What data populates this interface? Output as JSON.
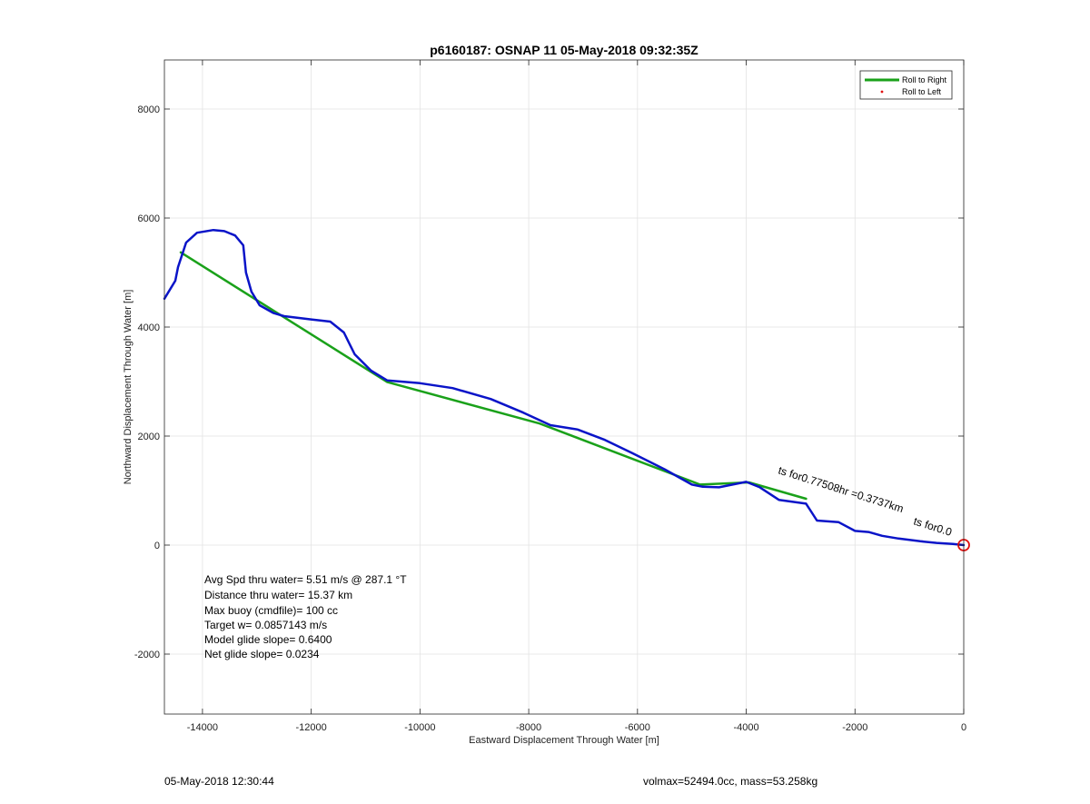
{
  "chart_data": {
    "type": "line",
    "title": "p6160187: OSNAP 11 05-May-2018 09:32:35Z",
    "xlabel": "Eastward Displacement Through Water [m]",
    "ylabel": "Northward Displacement Through Water [m]",
    "xlim": [
      -14700,
      0
    ],
    "ylim": [
      -3100,
      8900
    ],
    "xticks": [
      -14000,
      -12000,
      -10000,
      -8000,
      -6000,
      -4000,
      -2000,
      0
    ],
    "yticks": [
      -2000,
      0,
      2000,
      4000,
      6000,
      8000
    ],
    "grid": true,
    "legend": {
      "placement": "top-right",
      "entries": [
        {
          "name": "Roll to Right",
          "color": "#1aa11a",
          "marker": "line"
        },
        {
          "name": "Roll to Left",
          "color": "#e01010",
          "marker": "dot"
        }
      ]
    },
    "series": [
      {
        "name": "Roll to Right",
        "color": "#1aa11a",
        "x": [
          -14400,
          -10600,
          -7800,
          -4850,
          -3950,
          -2900
        ],
        "y": [
          5370,
          2990,
          2230,
          1110,
          1150,
          850
        ]
      },
      {
        "color": "#0a14c8",
        "x": [
          -14700,
          -14500,
          -14450,
          -14300,
          -14100,
          -13800,
          -13600,
          -13400,
          -13250,
          -13200,
          -13100,
          -12950,
          -12700,
          -12500,
          -12000,
          -11650,
          -11400,
          -11300,
          -11200,
          -10900,
          -10600,
          -10000,
          -9400,
          -8700,
          -8100,
          -7600,
          -7100,
          -6600,
          -6100,
          -5500,
          -5000,
          -4800,
          -4500,
          -4000,
          -3750,
          -3400,
          -2900,
          -2700,
          -2300,
          -2000,
          -1750,
          -1500,
          -1200,
          -800,
          -500,
          -200,
          0
        ],
        "y": [
          4520,
          4850,
          5100,
          5550,
          5730,
          5780,
          5760,
          5680,
          5500,
          5000,
          4650,
          4400,
          4260,
          4200,
          4140,
          4100,
          3900,
          3700,
          3500,
          3200,
          3020,
          2970,
          2880,
          2680,
          2430,
          2200,
          2120,
          1930,
          1690,
          1390,
          1110,
          1070,
          1060,
          1160,
          1060,
          830,
          760,
          450,
          420,
          260,
          240,
          170,
          120,
          70,
          40,
          20,
          0
        ]
      }
    ],
    "end_marker": {
      "x": 0,
      "y": 0,
      "color": "#e01010"
    },
    "rotated_annotation": "ts for0.77508hr =0.3737km",
    "rotated_annotation_overlap": "ts for0.0",
    "text_annotations": [
      "Avg Spd thru water=  5.51 m/s @ 287.1 °T",
      "Distance thru water= 15.37 km",
      "Max buoy (cmdfile)= 100 cc",
      "Target w= 0.0857143 m/s",
      "Model glide slope= 0.6400",
      "Net glide slope= 0.0234"
    ]
  },
  "footer": {
    "timestamp": "05-May-2018 12:30:44",
    "params": "volmax=52494.0cc, mass=53.258kg"
  }
}
